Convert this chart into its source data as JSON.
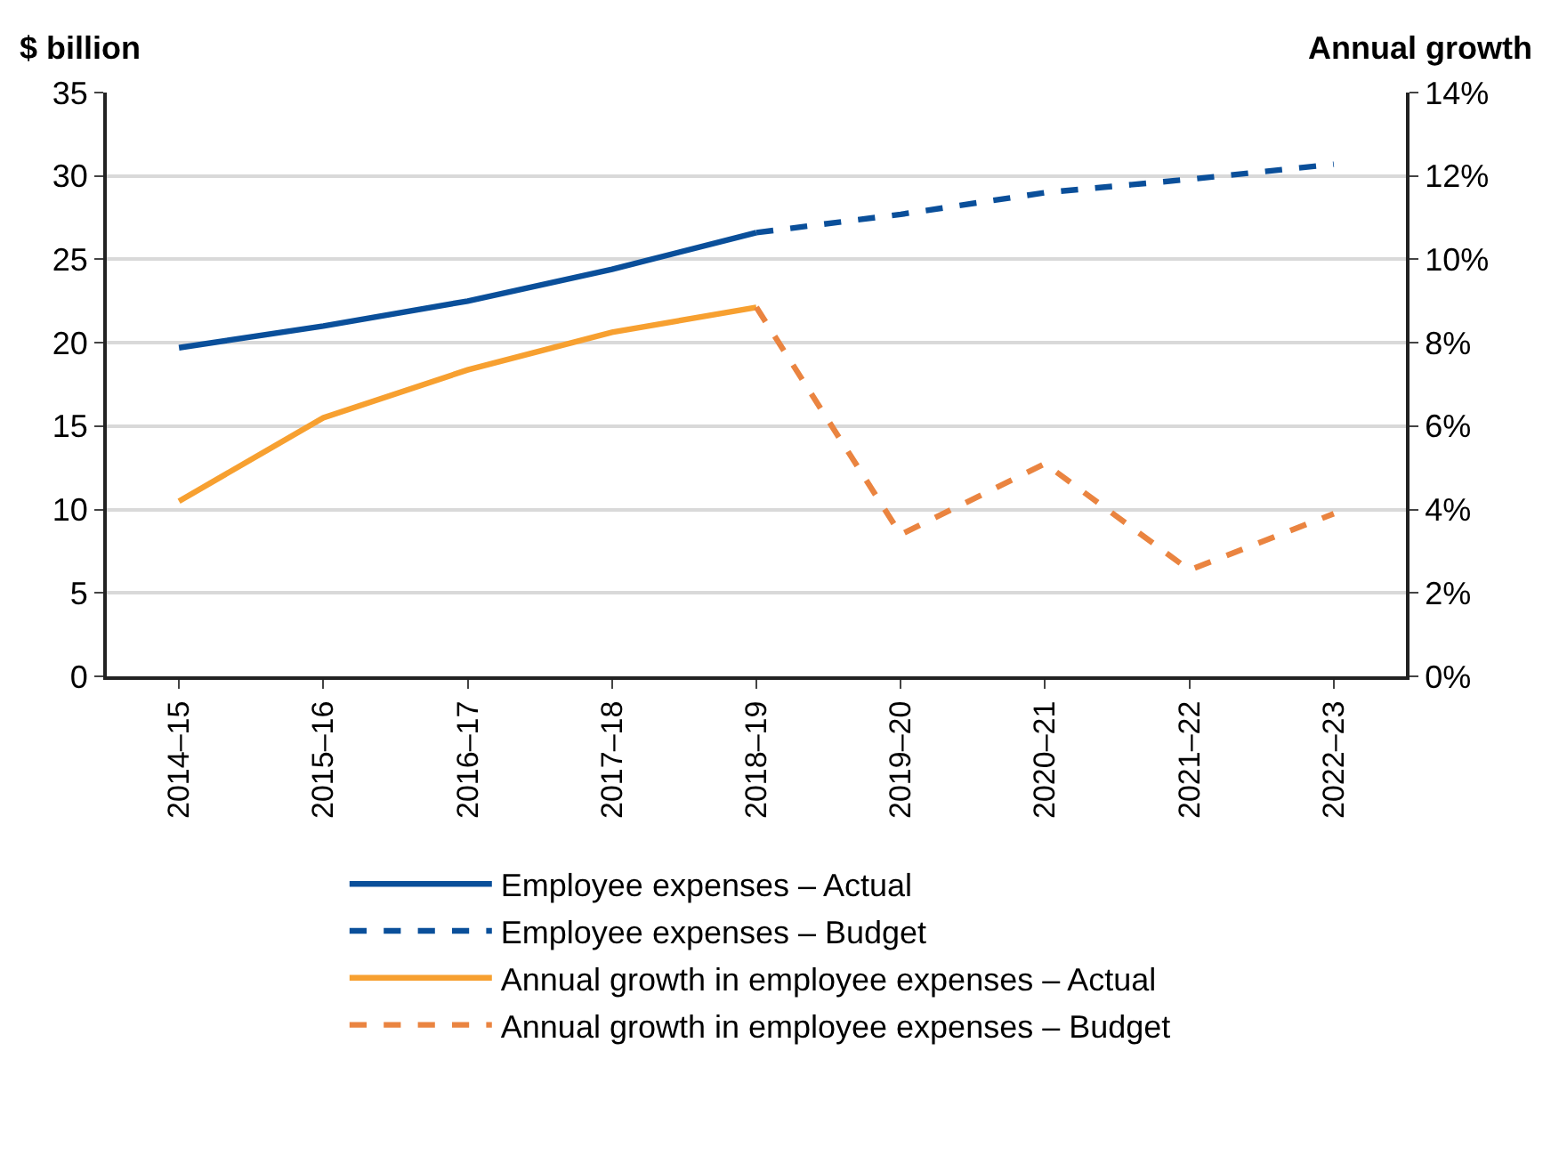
{
  "chart_data": {
    "type": "line",
    "ylabel": "$ billion",
    "y2label": "Annual growth",
    "categories": [
      "2014–15",
      "2015–16",
      "2016–17",
      "2017–18",
      "2018–19",
      "2019–20",
      "2020–21",
      "2021–22",
      "2022–23"
    ],
    "series": [
      {
        "name": "Employee expenses – Actual",
        "color": "#0a4f9a",
        "line_style": "solid",
        "values": [
          19.7,
          21.0,
          22.5,
          24.4,
          26.6,
          null,
          null,
          null,
          null
        ]
      },
      {
        "name": "Employee expenses – Budget",
        "color": "#0a4f9a",
        "line_style": "dashed",
        "values": [
          null,
          null,
          null,
          null,
          26.6,
          27.7,
          29.0,
          29.8,
          30.7
        ]
      },
      {
        "name": "Annual growth in employee expenses – Actual",
        "color": "#f7a030",
        "line_style": "solid",
        "axis": "y2",
        "values": [
          4.2,
          6.2,
          7.35,
          8.25,
          8.85,
          null,
          null,
          null,
          null
        ]
      },
      {
        "name": "Annual growth in employee expenses – Budget",
        "color": "#ea8440",
        "line_style": "dashed",
        "axis": "y2",
        "values": [
          null,
          null,
          null,
          null,
          8.85,
          3.4,
          5.1,
          2.55,
          3.9
        ]
      }
    ],
    "ylim": [
      0,
      35
    ],
    "yticks": [
      0,
      5,
      10,
      15,
      20,
      25,
      30,
      35
    ],
    "y2lim": [
      0,
      14
    ],
    "y2ticks": [
      {
        "value": 0,
        "label": "0%"
      },
      {
        "value": 2,
        "label": "2%"
      },
      {
        "value": 4,
        "label": "4%"
      },
      {
        "value": 6,
        "label": "6%"
      },
      {
        "value": 8,
        "label": "8%"
      },
      {
        "value": 10,
        "label": "10%"
      },
      {
        "value": 12,
        "label": "12%"
      },
      {
        "value": 14,
        "label": "14%"
      }
    ],
    "grid": "y",
    "legend": "bottom",
    "marker": "none"
  }
}
